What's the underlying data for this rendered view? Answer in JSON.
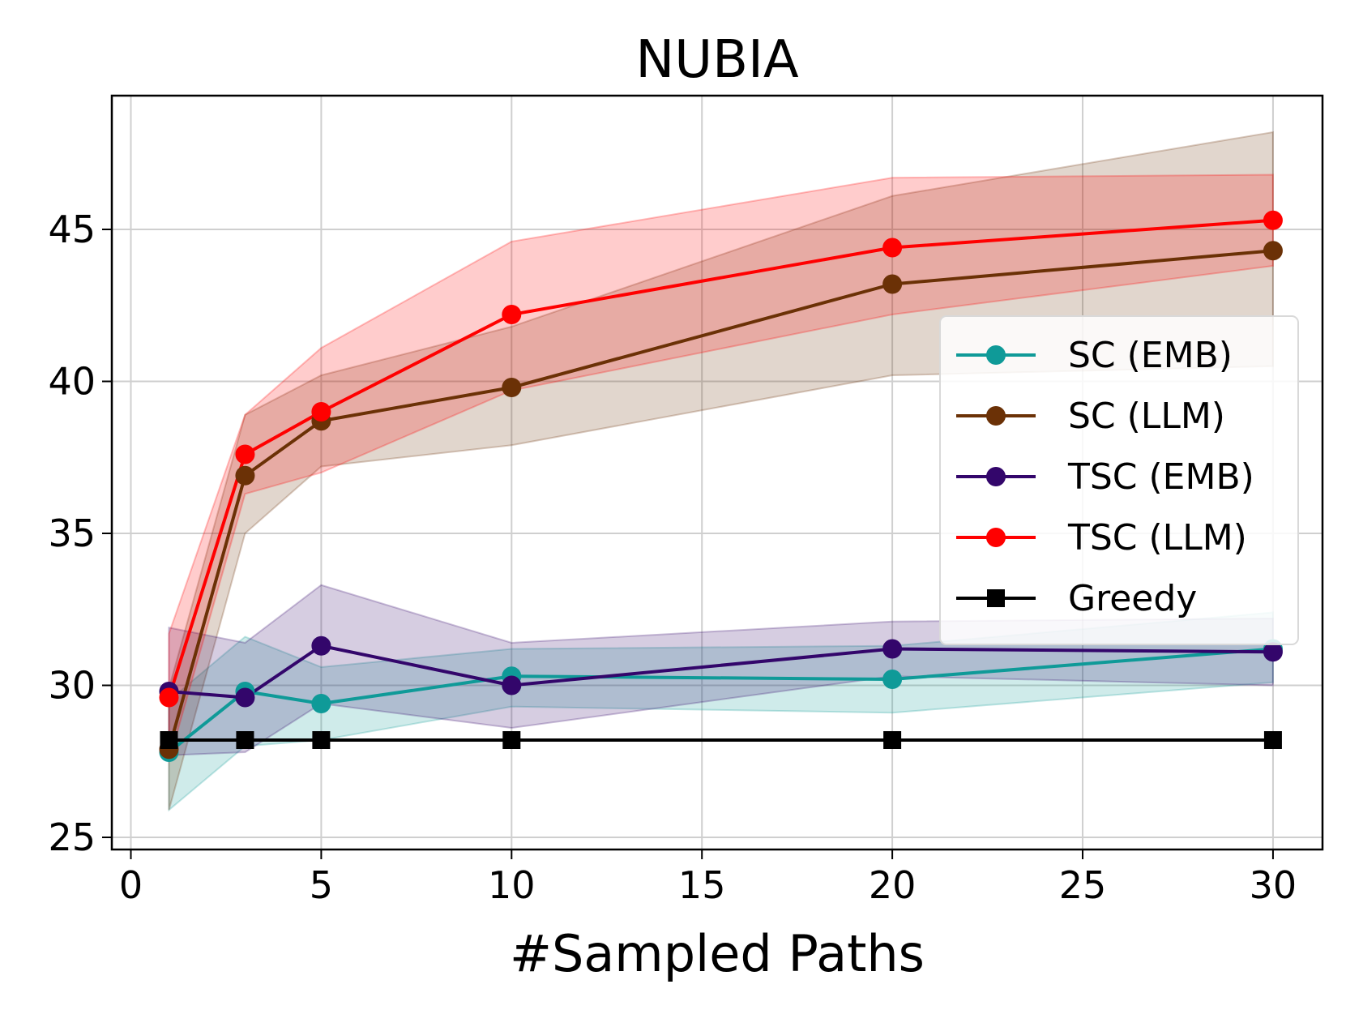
{
  "chart_data": {
    "type": "line",
    "title": "NUBIA",
    "xlabel": "#Sampled Paths",
    "ylabel": "",
    "xlim": [
      -0.5,
      31.3
    ],
    "ylim": [
      24.6,
      49.4
    ],
    "xticks": [
      0,
      5,
      10,
      15,
      20,
      25,
      30
    ],
    "yticks": [
      25,
      30,
      35,
      40,
      45
    ],
    "x": [
      1,
      3,
      5,
      10,
      20,
      30
    ],
    "grid": true,
    "legend_position": "center-right",
    "series": [
      {
        "name": "SC (EMB)",
        "color": "#0f9a98",
        "marker": "circle",
        "values": [
          27.8,
          29.8,
          29.4,
          30.3,
          30.2,
          31.2
        ],
        "band_low": [
          25.9,
          28.0,
          28.2,
          29.3,
          29.1,
          30.1
        ],
        "band_high": [
          29.5,
          31.6,
          30.6,
          31.2,
          31.3,
          32.4
        ]
      },
      {
        "name": "SC (LLM)",
        "color": "#6b3106",
        "marker": "circle",
        "values": [
          27.9,
          36.9,
          38.7,
          39.8,
          43.2,
          44.3
        ],
        "band_low": [
          25.9,
          35.0,
          37.2,
          37.9,
          40.2,
          40.5
        ],
        "band_high": [
          29.9,
          38.9,
          40.2,
          41.8,
          46.1,
          48.2
        ]
      },
      {
        "name": "TSC (EMB)",
        "color": "#33066b",
        "marker": "circle",
        "values": [
          29.8,
          29.6,
          31.3,
          30.0,
          31.2,
          31.1
        ],
        "band_low": [
          27.7,
          27.8,
          29.4,
          28.6,
          30.3,
          30.0
        ],
        "band_high": [
          31.9,
          31.4,
          33.3,
          31.4,
          32.1,
          32.2
        ]
      },
      {
        "name": "TSC (LLM)",
        "color": "#ff0000",
        "marker": "circle",
        "values": [
          29.6,
          37.6,
          39.0,
          42.2,
          44.4,
          45.3
        ],
        "band_low": [
          27.5,
          36.3,
          37.0,
          39.7,
          42.2,
          43.8
        ],
        "band_high": [
          31.7,
          38.9,
          41.1,
          44.6,
          46.7,
          46.8
        ]
      },
      {
        "name": "Greedy",
        "color": "#000000",
        "marker": "square",
        "values": [
          28.2,
          28.2,
          28.2,
          28.2,
          28.2,
          28.2
        ]
      }
    ]
  }
}
